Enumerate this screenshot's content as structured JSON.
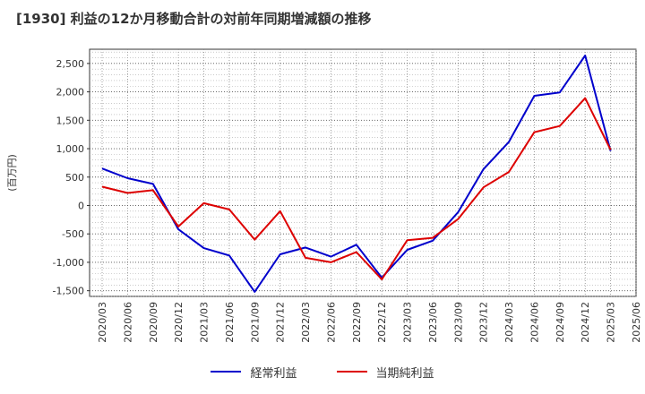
{
  "chart_data": {
    "type": "line",
    "title": "[1930]  利益の12か月移動合計の対前年同期増減額の推移",
    "ylabel": "(百万円)",
    "xlabel": "",
    "ylim": [
      -1600,
      2750
    ],
    "yticks": [
      -1500,
      -1000,
      -500,
      0,
      500,
      1000,
      1500,
      2000,
      2500
    ],
    "ytick_labels": [
      "-1,500",
      "-1,000",
      "-500",
      "0",
      "500",
      "1,000",
      "1,500",
      "2,000",
      "2,500"
    ],
    "categories": [
      "2020/03",
      "2020/06",
      "2020/09",
      "2020/12",
      "2021/03",
      "2021/06",
      "2021/09",
      "2021/12",
      "2022/03",
      "2022/06",
      "2022/09",
      "2022/12",
      "2023/03",
      "2023/06",
      "2023/09",
      "2023/12",
      "2024/03",
      "2024/06",
      "2024/09",
      "2024/12",
      "2025/03",
      "2025/06"
    ],
    "grid": true,
    "legend_position": "bottom",
    "series": [
      {
        "name": "経常利益",
        "color": "#0000cc",
        "values": [
          650,
          480,
          380,
          -420,
          -750,
          -880,
          -1520,
          -860,
          -740,
          -900,
          -690,
          -1270,
          -780,
          -620,
          -120,
          640,
          1120,
          1930,
          1990,
          2640,
          960,
          null
        ]
      },
      {
        "name": "当期純利益",
        "color": "#dd0000",
        "values": [
          330,
          220,
          270,
          -370,
          40,
          -70,
          -600,
          -100,
          -920,
          -1000,
          -820,
          -1300,
          -610,
          -570,
          -240,
          320,
          590,
          1290,
          1400,
          1890,
          980,
          null
        ]
      }
    ]
  }
}
